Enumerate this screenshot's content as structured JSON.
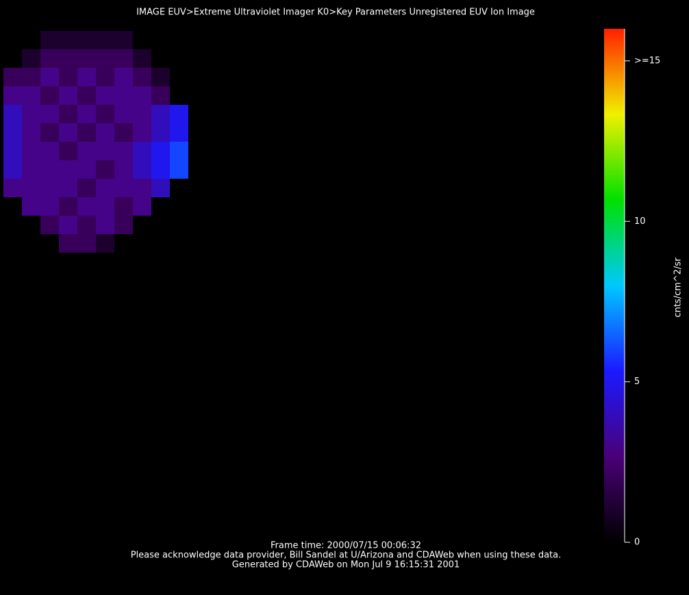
{
  "chart_data": {
    "type": "image",
    "title": "IMAGE  EUV>Extreme Ultraviolet Imager  K0>Key Parameters Unregistered EUV Ion Image",
    "colorbar_label": "cnts/cm^2/sr",
    "clim": [
      0,
      16
    ],
    "cticks": [
      0,
      5,
      10,
      {
        "value": 15,
        "label": ">=15"
      }
    ],
    "colormap": [
      "#000000",
      "#4a0078",
      "#1a1aff",
      "#00c8ff",
      "#00e000",
      "#f0f000",
      "#ff2000"
    ],
    "matrix": [
      [
        null,
        null,
        1,
        1,
        1,
        1,
        1,
        null,
        null,
        null
      ],
      [
        null,
        1,
        2,
        2,
        2,
        2,
        2,
        1,
        null,
        null
      ],
      [
        2,
        2,
        3,
        2,
        3,
        2,
        3,
        2,
        1,
        null
      ],
      [
        3,
        3,
        2,
        3,
        2,
        3,
        3,
        3,
        2,
        null
      ],
      [
        4,
        3,
        3,
        2,
        3,
        2,
        3,
        3,
        4,
        5
      ],
      [
        4,
        3,
        2,
        3,
        2,
        3,
        2,
        3,
        4,
        5
      ],
      [
        4,
        3,
        3,
        2,
        3,
        3,
        3,
        4,
        5,
        6
      ],
      [
        4,
        3,
        3,
        3,
        3,
        2,
        3,
        4,
        5,
        6
      ],
      [
        3,
        3,
        3,
        3,
        2,
        3,
        3,
        3,
        4,
        null
      ],
      [
        null,
        3,
        3,
        2,
        3,
        3,
        2,
        3,
        null,
        null
      ],
      [
        null,
        null,
        2,
        3,
        2,
        3,
        2,
        null,
        null,
        null
      ],
      [
        null,
        null,
        null,
        2,
        2,
        1,
        null,
        null,
        null,
        null
      ]
    ],
    "footer": [
      "Frame time: 2000/07/15 00:06:32",
      "Please acknowledge data provider, Bill Sandel at U/Arizona and CDAWeb when using these data.",
      "Generated by CDAWeb on Mon Jul  9 16:15:31 2001"
    ]
  }
}
